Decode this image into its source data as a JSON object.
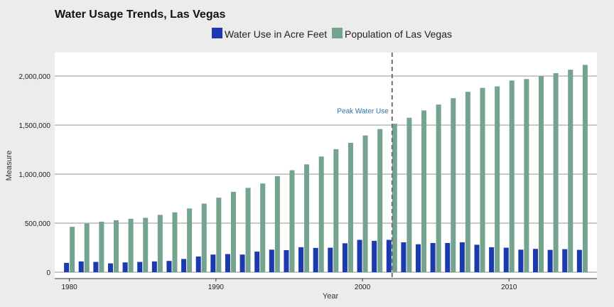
{
  "chart_data": {
    "type": "bar",
    "title": "Water Usage Trends, Las Vegas",
    "xlabel": "Year",
    "ylabel": "Measure",
    "x": [
      1980,
      1981,
      1982,
      1983,
      1984,
      1985,
      1986,
      1987,
      1988,
      1989,
      1990,
      1991,
      1992,
      1993,
      1994,
      1995,
      1996,
      1997,
      1998,
      1999,
      2000,
      2001,
      2002,
      2003,
      2004,
      2005,
      2006,
      2007,
      2008,
      2009,
      2010,
      2011,
      2012,
      2013,
      2014,
      2015
    ],
    "x_ticks": [
      1980,
      1990,
      2000,
      2010
    ],
    "x_tick_labels": [
      "1980",
      "1990",
      "2000",
      "2010"
    ],
    "xlim": [
      1979,
      2016
    ],
    "y_ticks": [
      0,
      500000,
      1000000,
      1500000,
      2000000
    ],
    "y_tick_labels": [
      "0",
      "500,000",
      "1,000,000",
      "1,500,000",
      "2,000,000"
    ],
    "ylim": [
      -65000,
      2240000
    ],
    "grid": "horizontal",
    "legend_position": "top",
    "series": [
      {
        "name": "Water Use in Acre Feet",
        "color": "#1a3aad",
        "values": [
          95000,
          110000,
          105000,
          90000,
          100000,
          105000,
          110000,
          115000,
          135000,
          160000,
          180000,
          185000,
          180000,
          210000,
          230000,
          225000,
          255000,
          248000,
          250000,
          295000,
          330000,
          320000,
          330000,
          305000,
          285000,
          298000,
          298000,
          305000,
          280000,
          255000,
          250000,
          230000,
          238000,
          228000,
          235000,
          228000
        ]
      },
      {
        "name": "Population of Las Vegas",
        "color": "#74a48e",
        "values": [
          463000,
          497000,
          515000,
          530000,
          545000,
          555000,
          585000,
          610000,
          650000,
          700000,
          760000,
          820000,
          860000,
          905000,
          980000,
          1040000,
          1100000,
          1180000,
          1255000,
          1320000,
          1395000,
          1460000,
          1515000,
          1575000,
          1650000,
          1710000,
          1775000,
          1840000,
          1880000,
          1895000,
          1955000,
          1970000,
          2000000,
          2030000,
          2065000,
          2115000
        ]
      }
    ],
    "annotations": [
      {
        "label": "Peak Water Use",
        "x": 2002,
        "style": "dashed-vertical-line"
      }
    ]
  }
}
